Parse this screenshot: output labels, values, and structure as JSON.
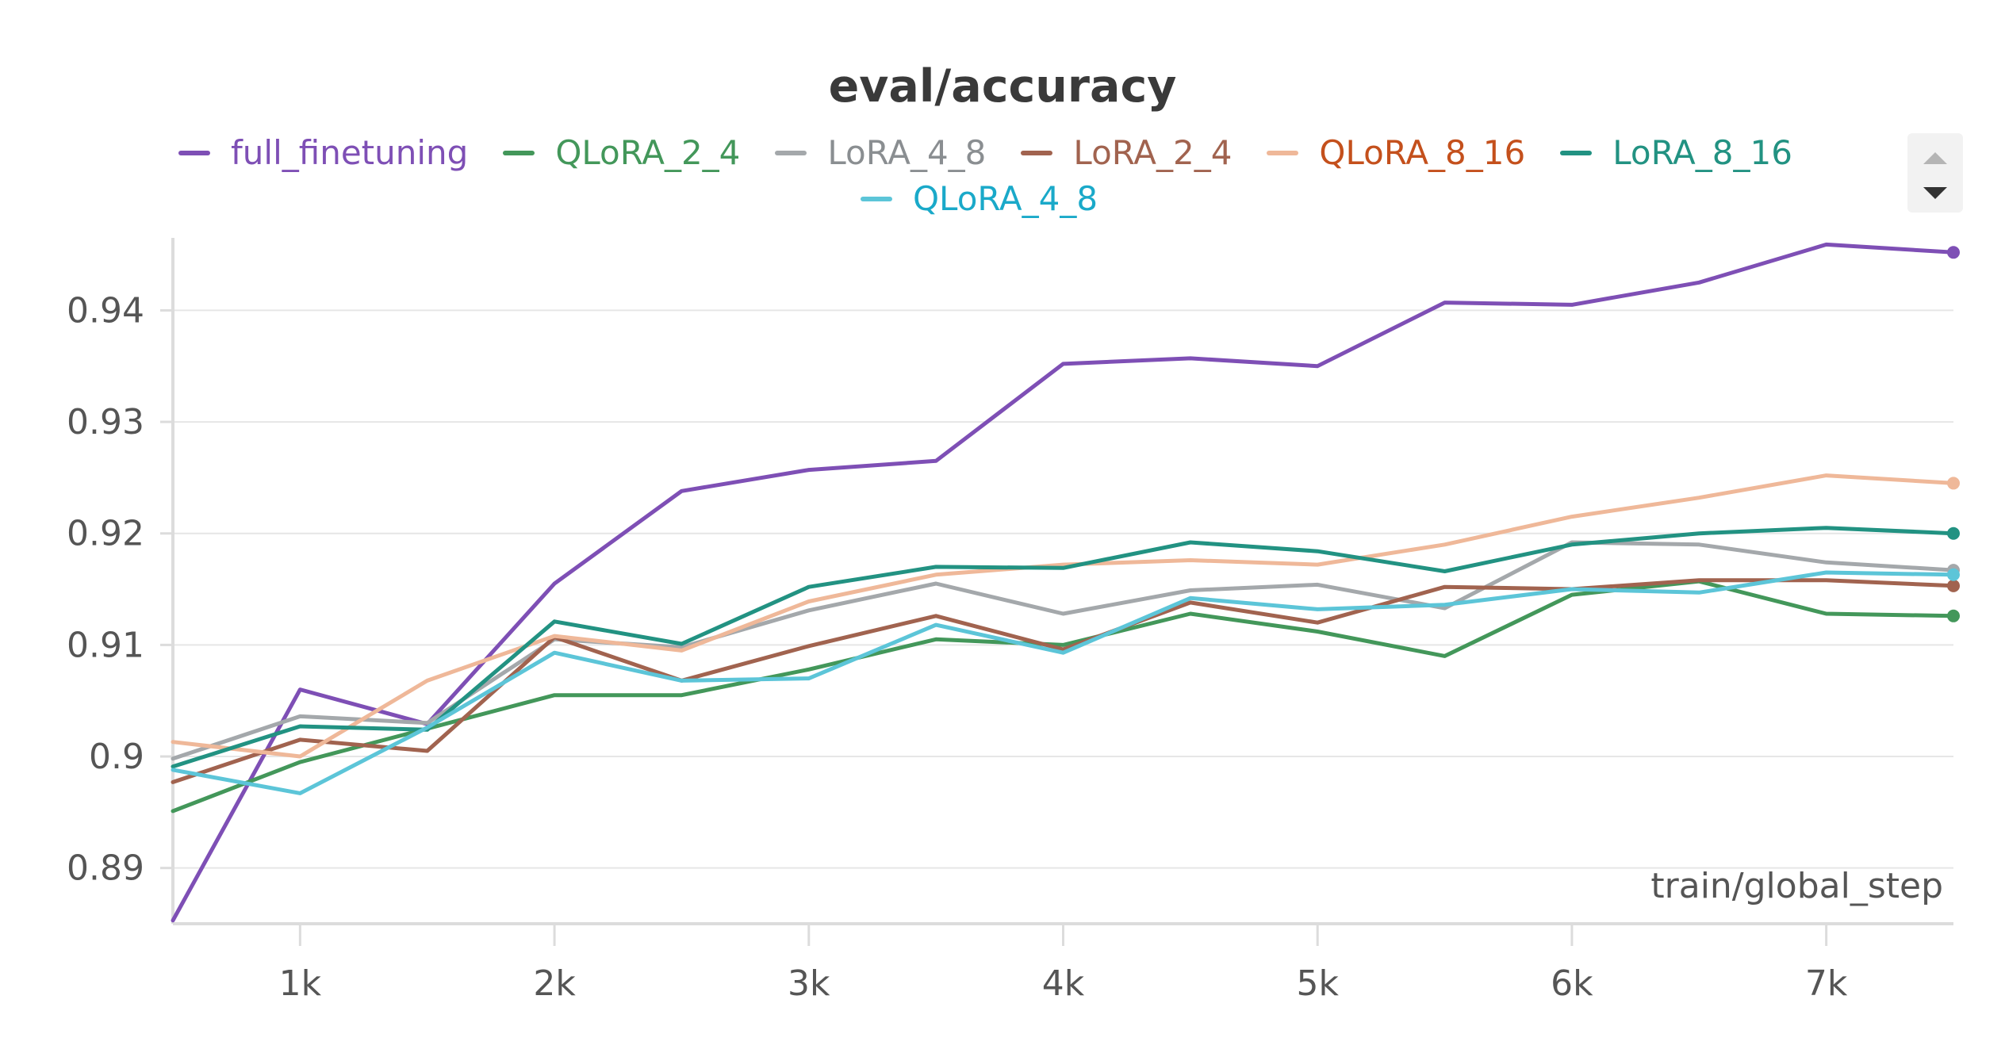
{
  "chart_data": {
    "type": "line",
    "title": "eval/accuracy",
    "xlabel": "train/global_step",
    "ylabel": "",
    "xlim": [
      500,
      7500
    ],
    "ylim": [
      0.885,
      0.9465
    ],
    "x_ticks": [
      1000,
      2000,
      3000,
      4000,
      5000,
      6000,
      7000
    ],
    "x_tick_labels": [
      "1k",
      "2k",
      "3k",
      "4k",
      "5k",
      "6k",
      "7k"
    ],
    "y_ticks": [
      0.89,
      0.9,
      0.91,
      0.92,
      0.93,
      0.94
    ],
    "y_tick_labels": [
      "0.89",
      "0.9",
      "0.91",
      "0.92",
      "0.93",
      "0.94"
    ],
    "grid": true,
    "legend_position": "top",
    "x": [
      500,
      1000,
      1500,
      2000,
      2500,
      3000,
      3500,
      4000,
      4500,
      5000,
      5500,
      6000,
      6500,
      7000,
      7500
    ],
    "series": [
      {
        "name": "full_finetuning",
        "color": "#7e4fb5",
        "label_color": "#7e4fb5",
        "values": [
          0.8853,
          0.906,
          0.9029,
          0.9155,
          0.9238,
          0.9257,
          0.9265,
          0.9352,
          0.9357,
          0.935,
          0.9407,
          0.9405,
          0.9425,
          0.9459,
          0.9452
        ]
      },
      {
        "name": "QLoRA_2_4",
        "color": "#43975a",
        "label_color": "#43975a",
        "values": [
          0.8951,
          0.8995,
          0.9025,
          0.9055,
          0.9055,
          0.9078,
          0.9105,
          0.91,
          0.9128,
          0.9112,
          0.909,
          0.9145,
          0.9157,
          0.9128,
          0.9126
        ]
      },
      {
        "name": "LoRA_4_8",
        "color": "#a4a8ab",
        "label_color": "#8a8e91",
        "values": [
          0.8998,
          0.9036,
          0.903,
          0.9105,
          0.9098,
          0.9131,
          0.9155,
          0.9128,
          0.9149,
          0.9154,
          0.9133,
          0.9192,
          0.919,
          0.9174,
          0.9167
        ]
      },
      {
        "name": "LoRA_2_4",
        "color": "#a1634f",
        "label_color": "#a1634f",
        "values": [
          0.8977,
          0.9015,
          0.9005,
          0.9107,
          0.9068,
          0.9099,
          0.9126,
          0.9096,
          0.9138,
          0.912,
          0.9152,
          0.915,
          0.9158,
          0.9158,
          0.9153
        ]
      },
      {
        "name": "QLoRA_8_16",
        "color": "#efb899",
        "label_color": "#c4501c",
        "values": [
          0.9013,
          0.9,
          0.9068,
          0.9108,
          0.9095,
          0.9139,
          0.9163,
          0.9172,
          0.9176,
          0.9172,
          0.919,
          0.9215,
          0.9232,
          0.9252,
          0.9245
        ]
      },
      {
        "name": "LoRA_8_16",
        "color": "#229282",
        "label_color": "#229282",
        "values": [
          0.8991,
          0.9027,
          0.9024,
          0.9121,
          0.9101,
          0.9152,
          0.917,
          0.9169,
          0.9192,
          0.9184,
          0.9166,
          0.919,
          0.92,
          0.9205,
          0.92
        ]
      },
      {
        "name": "QLoRA_4_8",
        "color": "#5cc5d8",
        "label_color": "#1aa9c9",
        "values": [
          0.8988,
          0.8967,
          0.9026,
          0.9093,
          0.9068,
          0.907,
          0.9118,
          0.9093,
          0.9142,
          0.9132,
          0.9136,
          0.915,
          0.9147,
          0.9165,
          0.9163
        ]
      }
    ]
  }
}
